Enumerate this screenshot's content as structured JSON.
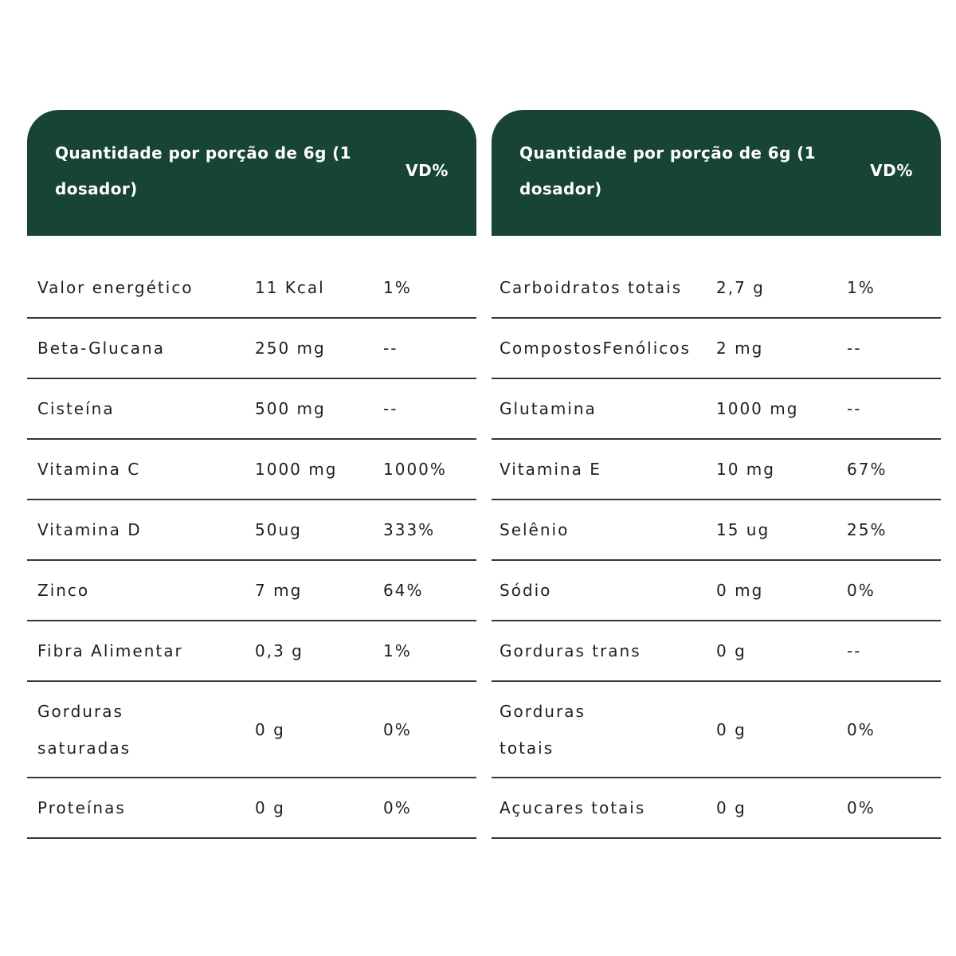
{
  "tables": [
    {
      "header": {
        "qty": "Quantidade por porção de 6g (1 dosador)",
        "vd": "VD%"
      },
      "rows": [
        {
          "name": "Valor energético",
          "amount": "11 Kcal",
          "vd": "1%"
        },
        {
          "name": "Beta-Glucana",
          "amount": "250 mg",
          "vd": "--"
        },
        {
          "name": "Cisteína",
          "amount": "500 mg",
          "vd": "--"
        },
        {
          "name": "Vitamina C",
          "amount": "1000 mg",
          "vd": "1000%"
        },
        {
          "name": "Vitamina D",
          "amount": "50ug",
          "vd": "333%"
        },
        {
          "name": "Zinco",
          "amount": "7 mg",
          "vd": "64%"
        },
        {
          "name": "Fibra Alimentar",
          "amount": "0,3 g",
          "vd": "1%"
        },
        {
          "name": "Gorduras saturadas",
          "amount": "0 g",
          "vd": "0%"
        },
        {
          "name": "Proteínas",
          "amount": "0 g",
          "vd": "0%"
        }
      ]
    },
    {
      "header": {
        "qty": "Quantidade por porção de 6g (1 dosador)",
        "vd": "VD%"
      },
      "rows": [
        {
          "name": "Carboidratos totais",
          "amount": "2,7 g",
          "vd": "1%"
        },
        {
          "name": "CompostosFenólicos",
          "amount": "2 mg",
          "vd": "--"
        },
        {
          "name": "Glutamina",
          "amount": "1000 mg",
          "vd": "--"
        },
        {
          "name": "Vitamina E",
          "amount": "10 mg",
          "vd": "67%"
        },
        {
          "name": "Selênio",
          "amount": "15 ug",
          "vd": "25%"
        },
        {
          "name": "Sódio",
          "amount": "0 mg",
          "vd": "0%"
        },
        {
          "name": "Gorduras trans",
          "amount": "0 g",
          "vd": "--"
        },
        {
          "name": "Gorduras totais",
          "amount": "0 g",
          "vd": "0%"
        },
        {
          "name": "Açucares totais",
          "amount": "0 g",
          "vd": "0%"
        }
      ]
    }
  ]
}
